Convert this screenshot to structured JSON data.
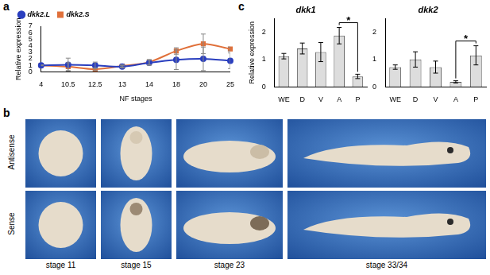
{
  "panel_labels": [
    "a",
    "b",
    "c"
  ],
  "chart_data": [
    {
      "type": "line",
      "x_label": "NF stages",
      "y_label": "Relative expression",
      "categories": [
        "4",
        "10.5",
        "12.5",
        "13",
        "14",
        "18",
        "20",
        "25"
      ],
      "series": [
        {
          "name": "dkk2.L",
          "color": "#2a3fbf",
          "marker": "circle",
          "line_style": "solid",
          "values": [
            1.0,
            1.1,
            1.0,
            0.8,
            1.4,
            1.85,
            2.0,
            1.7
          ],
          "errors": [
            0.05,
            1.0,
            0.5,
            0.2,
            0.4,
            1.5,
            1.8,
            1.2
          ]
        },
        {
          "name": "dkk2.S",
          "color": "#e0703a",
          "marker": "square",
          "line_style": "solid",
          "values": [
            1.0,
            0.8,
            0.4,
            0.9,
            1.5,
            3.2,
            4.3,
            3.5
          ],
          "errors": [
            0.05,
            0.6,
            0.2,
            0.15,
            0.4,
            0.5,
            1.5,
            0.3
          ]
        }
      ],
      "ylim": [
        0,
        7
      ],
      "yticks": [
        0,
        1,
        2,
        3,
        4,
        5,
        6,
        7
      ],
      "grid": false,
      "legend": "upper left"
    },
    {
      "type": "bar",
      "title": "dkk1",
      "y_label": "Relative expression",
      "categories": [
        "WE",
        "D",
        "V",
        "A",
        "P"
      ],
      "values": [
        1.12,
        1.4,
        1.27,
        1.87,
        0.38
      ],
      "errors": [
        0.1,
        0.2,
        0.35,
        0.3,
        0.08
      ],
      "color": "#dddddd",
      "ylim": [
        0,
        2.5
      ],
      "yticks": [
        0,
        1,
        2
      ],
      "grid": false,
      "annotations": [
        {
          "text": "*",
          "from": "A",
          "to": "P"
        }
      ]
    },
    {
      "type": "bar",
      "title": "dkk2",
      "categories": [
        "WE",
        "D",
        "V",
        "A",
        "P"
      ],
      "values": [
        0.72,
        1.0,
        0.72,
        0.18,
        1.15
      ],
      "errors": [
        0.08,
        0.28,
        0.22,
        0.04,
        0.35
      ],
      "color": "#dddddd",
      "ylim": [
        0,
        2.5
      ],
      "yticks": [
        0,
        1,
        2
      ],
      "grid": false,
      "annotations": [
        {
          "text": "*",
          "from": "A",
          "to": "P"
        }
      ]
    }
  ],
  "image_grid": {
    "rows": [
      "Antisense",
      "Sense"
    ],
    "columns": [
      "stage 11",
      "stage 15",
      "stage 23",
      "stage 33/34"
    ]
  }
}
